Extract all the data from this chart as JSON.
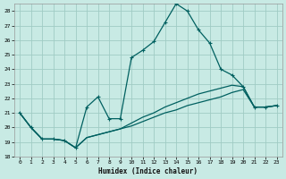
{
  "title": "",
  "xlabel": "Humidex (Indice chaleur)",
  "xlim": [
    -0.5,
    23.5
  ],
  "ylim": [
    18,
    28.5
  ],
  "yticks": [
    18,
    19,
    20,
    21,
    22,
    23,
    24,
    25,
    26,
    27,
    28
  ],
  "xticks": [
    0,
    1,
    2,
    3,
    4,
    5,
    6,
    7,
    8,
    9,
    10,
    11,
    12,
    13,
    14,
    15,
    16,
    17,
    18,
    19,
    20,
    21,
    22,
    23
  ],
  "background_color": "#c8eae4",
  "grid_color": "#a0ccc4",
  "line_color": "#006060",
  "line1_x": [
    0,
    1,
    2,
    3,
    4,
    5,
    6,
    7,
    8,
    9,
    10,
    11,
    12,
    13,
    14,
    15,
    16,
    17,
    18,
    19,
    20,
    21,
    22,
    23
  ],
  "line1_y": [
    21.0,
    20.0,
    19.2,
    19.2,
    19.1,
    18.6,
    21.4,
    22.1,
    20.6,
    20.6,
    24.8,
    25.3,
    25.9,
    27.2,
    28.5,
    28.0,
    26.7,
    25.8,
    24.0,
    23.6,
    22.8,
    21.4,
    21.4,
    21.5
  ],
  "line2_x": [
    0,
    1,
    2,
    3,
    4,
    5,
    6,
    7,
    8,
    9,
    10,
    11,
    12,
    13,
    14,
    15,
    16,
    17,
    18,
    19,
    20,
    21,
    22,
    23
  ],
  "line2_y": [
    21.0,
    20.0,
    19.2,
    19.2,
    19.1,
    18.6,
    19.3,
    19.5,
    19.7,
    19.9,
    20.1,
    20.4,
    20.7,
    21.0,
    21.2,
    21.5,
    21.7,
    21.9,
    22.1,
    22.4,
    22.6,
    21.4,
    21.4,
    21.5
  ],
  "line3_x": [
    0,
    1,
    2,
    3,
    4,
    5,
    6,
    7,
    8,
    9,
    10,
    11,
    12,
    13,
    14,
    15,
    16,
    17,
    18,
    19,
    20,
    21,
    22,
    23
  ],
  "line3_y": [
    21.0,
    20.0,
    19.2,
    19.2,
    19.1,
    18.6,
    19.3,
    19.5,
    19.7,
    19.9,
    20.3,
    20.7,
    21.0,
    21.4,
    21.7,
    22.0,
    22.3,
    22.5,
    22.7,
    22.9,
    22.8,
    21.4,
    21.4,
    21.5
  ]
}
